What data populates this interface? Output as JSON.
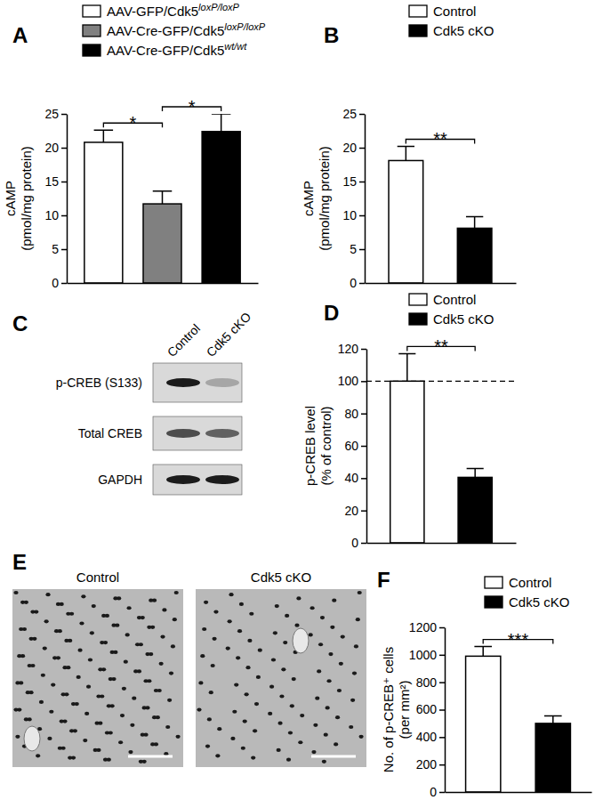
{
  "chart_data": [
    {
      "panel": "A",
      "type": "bar",
      "categories": [
        null
      ],
      "ylabel": [
        "cAMP",
        "(pmol/mg protein)"
      ],
      "ylim": [
        0,
        25
      ],
      "yticks": [
        0,
        5,
        10,
        15,
        20,
        25
      ],
      "legend": "top-left",
      "series": [
        {
          "name": "AAV-GFP/Cdk5loxP/loxP",
          "color": "#ffffff",
          "values": [
            20.8
          ],
          "errors": [
            1.8
          ]
        },
        {
          "name": "AAV-Cre-GFP/Cdk5loxP/loxP",
          "color": "#808080",
          "values": [
            11.7
          ],
          "errors": [
            1.9
          ]
        },
        {
          "name": "AAV-Cre-GFP/Cdk5wt/wt",
          "color": "#000000",
          "values": [
            22.4
          ],
          "errors": [
            2.6
          ]
        }
      ],
      "significance": [
        {
          "between": [
            0,
            1
          ],
          "label": "*"
        },
        {
          "between": [
            1,
            2
          ],
          "label": "*"
        }
      ]
    },
    {
      "panel": "B",
      "type": "bar",
      "categories": [
        null
      ],
      "ylabel": [
        "cAMP",
        "(pmol/mg protein)"
      ],
      "ylim": [
        0,
        25
      ],
      "yticks": [
        0,
        5,
        10,
        15,
        20,
        25
      ],
      "legend": "top-right",
      "series": [
        {
          "name": "Control",
          "color": "#ffffff",
          "values": [
            18.1
          ],
          "errors": [
            2.1
          ]
        },
        {
          "name": "Cdk5 cKO",
          "color": "#000000",
          "values": [
            8.1
          ],
          "errors": [
            1.7
          ]
        }
      ],
      "significance": [
        {
          "between": [
            0,
            1
          ],
          "label": "**"
        }
      ]
    },
    {
      "panel": "D",
      "type": "bar",
      "categories": [
        null
      ],
      "ylabel": [
        "p-CREB level",
        "(% of control)"
      ],
      "ylim": [
        0,
        120
      ],
      "yticks": [
        0,
        20,
        40,
        60,
        80,
        100,
        120
      ],
      "legend": "top-right",
      "reference_line": 100,
      "series": [
        {
          "name": "Control",
          "color": "#ffffff",
          "values": [
            100
          ],
          "errors": [
            17
          ]
        },
        {
          "name": "Cdk5 cKO",
          "color": "#000000",
          "values": [
            40.5
          ],
          "errors": [
            5.5
          ]
        }
      ],
      "significance": [
        {
          "between": [
            0,
            1
          ],
          "label": "**"
        }
      ]
    },
    {
      "panel": "F",
      "type": "bar",
      "categories": [
        null
      ],
      "ylabel": [
        "No. of p-CREB⁺ cells",
        "(per mm²)"
      ],
      "ylim": [
        0,
        1200
      ],
      "yticks": [
        0,
        200,
        400,
        600,
        800,
        1000,
        1200
      ],
      "legend": "top-right",
      "series": [
        {
          "name": "Control",
          "color": "#ffffff",
          "values": [
            990
          ],
          "errors": [
            70
          ]
        },
        {
          "name": "Cdk5 cKO",
          "color": "#000000",
          "values": [
            500
          ],
          "errors": [
            55
          ]
        }
      ],
      "significance": [
        {
          "between": [
            0,
            1
          ],
          "label": "***"
        }
      ]
    }
  ],
  "blot": {
    "panel": "C",
    "lanes": [
      "Control",
      "Cdk5 cKO"
    ],
    "rows": [
      "p-CREB (S133)",
      "Total CREB",
      "GAPDH"
    ]
  },
  "micrographs": {
    "panel": "E",
    "titles": [
      "Control",
      "Cdk5 cKO"
    ]
  }
}
